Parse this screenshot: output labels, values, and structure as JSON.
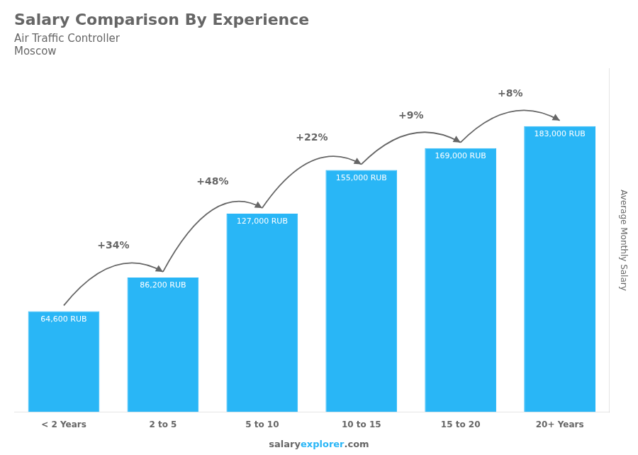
{
  "chart_data": {
    "type": "bar",
    "title": "Salary Comparison By Experience",
    "subtitle": "Air Traffic Controller",
    "city": "Moscow",
    "ylabel": "Average Monthly Salary",
    "categories": [
      "< 2 Years",
      "2 to 5",
      "5 to 10",
      "10 to 15",
      "15 to 20",
      "20+ Years"
    ],
    "values": [
      64600,
      86200,
      127000,
      155000,
      169000,
      183000
    ],
    "value_labels": [
      "64,600 RUB",
      "86,200 RUB",
      "127,000 RUB",
      "155,000 RUB",
      "169,000 RUB",
      "183,000 RUB"
    ],
    "data_labels": true,
    "annotations": [
      "+34%",
      "+48%",
      "+22%",
      "+9%",
      "+8%"
    ],
    "watermark": [
      "salary",
      "explorer",
      ".com"
    ],
    "color": "#29B6F6",
    "ylim": [
      0,
      220000
    ],
    "grid": false,
    "tick_labels": "x"
  }
}
